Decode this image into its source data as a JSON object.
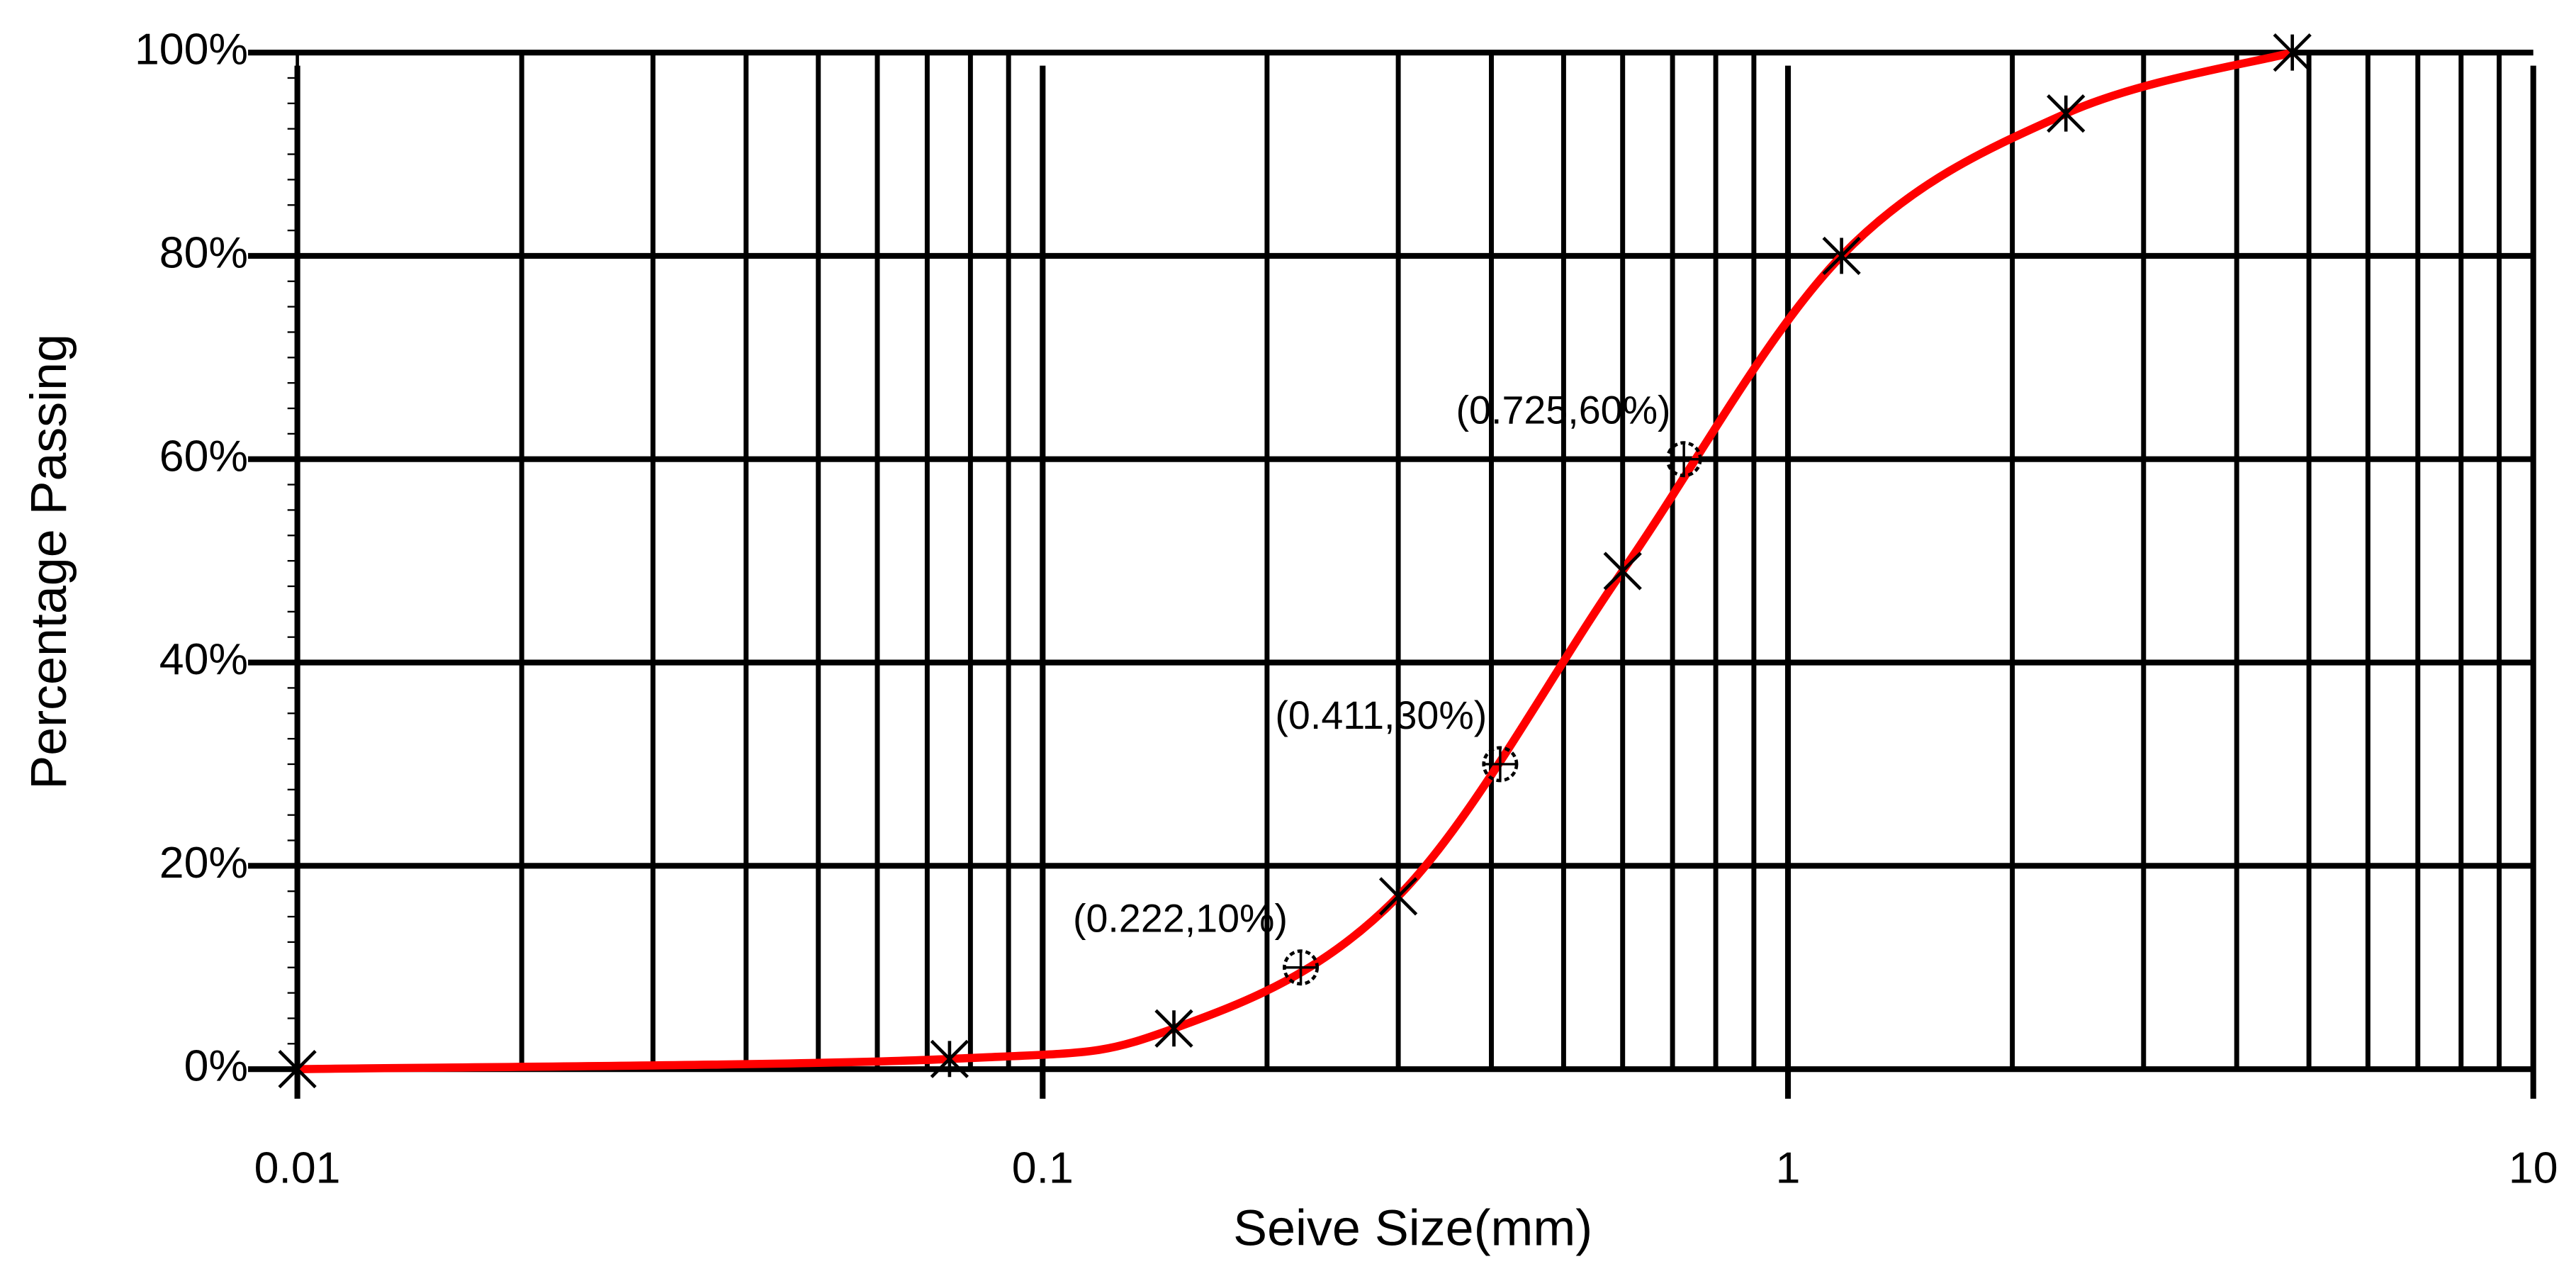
{
  "chart_data": {
    "type": "line",
    "x_label": "Seive Size(mm)",
    "y_label": "Percentage Passing",
    "x_scale": "log",
    "xlim": [
      0.01,
      10
    ],
    "xticks": [
      0.01,
      0.1,
      1,
      10
    ],
    "ylim": [
      0,
      100
    ],
    "yticks": [
      {
        "value": 0,
        "label": "0%"
      },
      {
        "value": 20,
        "label": "20%"
      },
      {
        "value": 40,
        "label": "40%"
      },
      {
        "value": 60,
        "label": "60%"
      },
      {
        "value": 80,
        "label": "80%"
      },
      {
        "value": 100,
        "label": "100%"
      }
    ],
    "grid": true,
    "series": [
      {
        "color": "#ff0000",
        "marker": "asterisk",
        "line": true,
        "x": [
          0.01,
          0.075,
          0.15,
          0.3,
          0.6,
          1.18,
          2.36,
          4.75
        ],
        "values": [
          0,
          1,
          4,
          17,
          49,
          80,
          94,
          100
        ]
      },
      {
        "color": "#000000",
        "marker": "circle-cross",
        "line": false,
        "x": [
          0.222,
          0.411,
          0.725
        ],
        "values": [
          10,
          30,
          60
        ],
        "value_labels": [
          "(0.222,10%)",
          "(0.411,30%)",
          "(0.725,60%)"
        ]
      }
    ]
  }
}
